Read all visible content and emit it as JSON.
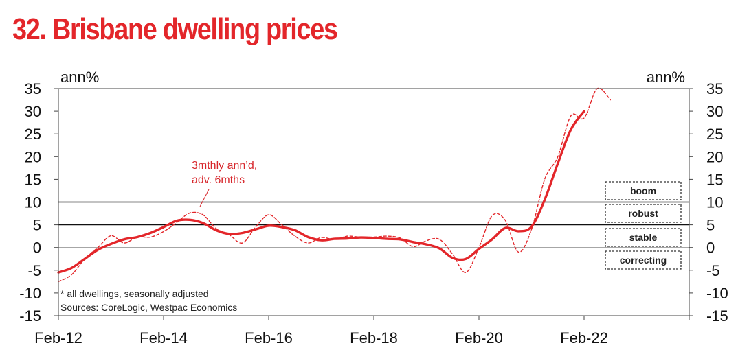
{
  "title": "32. Brisbane dwelling prices",
  "chart_data": {
    "type": "line",
    "title": "32. Brisbane dwelling prices",
    "ylabel_left": "ann%",
    "ylabel_right": "ann%",
    "ylim": [
      -15,
      35
    ],
    "yticks": [
      35,
      30,
      25,
      20,
      15,
      10,
      5,
      0,
      -5,
      -10,
      -15
    ],
    "xlim": [
      "2012-02",
      "2024-02"
    ],
    "xticks": [
      "Feb-12",
      "Feb-14",
      "Feb-16",
      "Feb-18",
      "Feb-20",
      "Feb-22"
    ],
    "reference_lines": [
      10,
      5,
      0
    ],
    "annotation": [
      "3mthly ann’d,",
      "adv. 6mths"
    ],
    "notes": [
      "* all dwellings, seasonally adjusted",
      "Sources: CoreLogic, Westpac Economics"
    ],
    "legend": [
      "boom",
      "robust",
      "stable",
      "correcting"
    ],
    "colors": {
      "series": "#e3262a",
      "title": "#e3262a",
      "annotation": "#d7262b",
      "ref_line": "#111111",
      "zero_line": "#9a9a9a"
    },
    "series": [
      {
        "style": "solid",
        "x": [
          "2012-02",
          "2012-05",
          "2012-08",
          "2012-11",
          "2013-02",
          "2013-05",
          "2013-08",
          "2013-11",
          "2014-02",
          "2014-05",
          "2014-08",
          "2014-11",
          "2015-02",
          "2015-05",
          "2015-08",
          "2015-11",
          "2016-02",
          "2016-05",
          "2016-08",
          "2016-11",
          "2017-02",
          "2017-05",
          "2017-08",
          "2017-11",
          "2018-02",
          "2018-05",
          "2018-08",
          "2018-11",
          "2019-02",
          "2019-05",
          "2019-08",
          "2019-11",
          "2020-02",
          "2020-05",
          "2020-08",
          "2020-11",
          "2021-02",
          "2021-05",
          "2021-08",
          "2021-11",
          "2022-02"
        ],
        "values": [
          -5.5,
          -4.5,
          -2.5,
          -0.5,
          0.8,
          1.8,
          2.3,
          3.2,
          4.5,
          5.9,
          6.1,
          5.4,
          3.8,
          3.0,
          3.2,
          4.0,
          4.8,
          4.5,
          3.8,
          2.3,
          1.6,
          1.9,
          2.0,
          2.2,
          2.1,
          1.9,
          1.8,
          1.2,
          0.7,
          -0.2,
          -2.3,
          -2.5,
          -0.3,
          1.8,
          4.3,
          3.6,
          4.6,
          10.5,
          18.5,
          26.0,
          30.0
        ]
      },
      {
        "style": "dashed",
        "x": [
          "2012-02",
          "2012-05",
          "2012-08",
          "2012-11",
          "2013-02",
          "2013-05",
          "2013-08",
          "2013-11",
          "2014-02",
          "2014-05",
          "2014-08",
          "2014-11",
          "2015-02",
          "2015-05",
          "2015-08",
          "2015-11",
          "2016-02",
          "2016-05",
          "2016-08",
          "2016-11",
          "2017-02",
          "2017-05",
          "2017-08",
          "2017-11",
          "2018-02",
          "2018-05",
          "2018-08",
          "2018-11",
          "2019-02",
          "2019-05",
          "2019-08",
          "2019-11",
          "2020-02",
          "2020-05",
          "2020-08",
          "2020-11",
          "2021-02",
          "2021-05",
          "2021-08",
          "2021-11",
          "2022-02",
          "2022-05",
          "2022-08"
        ],
        "values": [
          -7.5,
          -6.0,
          -2.5,
          0.0,
          2.6,
          1.0,
          2.3,
          2.3,
          3.5,
          5.5,
          7.6,
          7.2,
          4.2,
          2.8,
          1.0,
          4.5,
          7.2,
          5.0,
          2.5,
          1.0,
          2.2,
          1.8,
          2.5,
          2.3,
          2.3,
          2.5,
          2.1,
          0.2,
          1.5,
          1.8,
          -1.5,
          -5.5,
          0.0,
          7.0,
          6.0,
          -1.0,
          4.0,
          15.0,
          20.0,
          29.0,
          28.5,
          35.0,
          32.5
        ]
      }
    ]
  }
}
